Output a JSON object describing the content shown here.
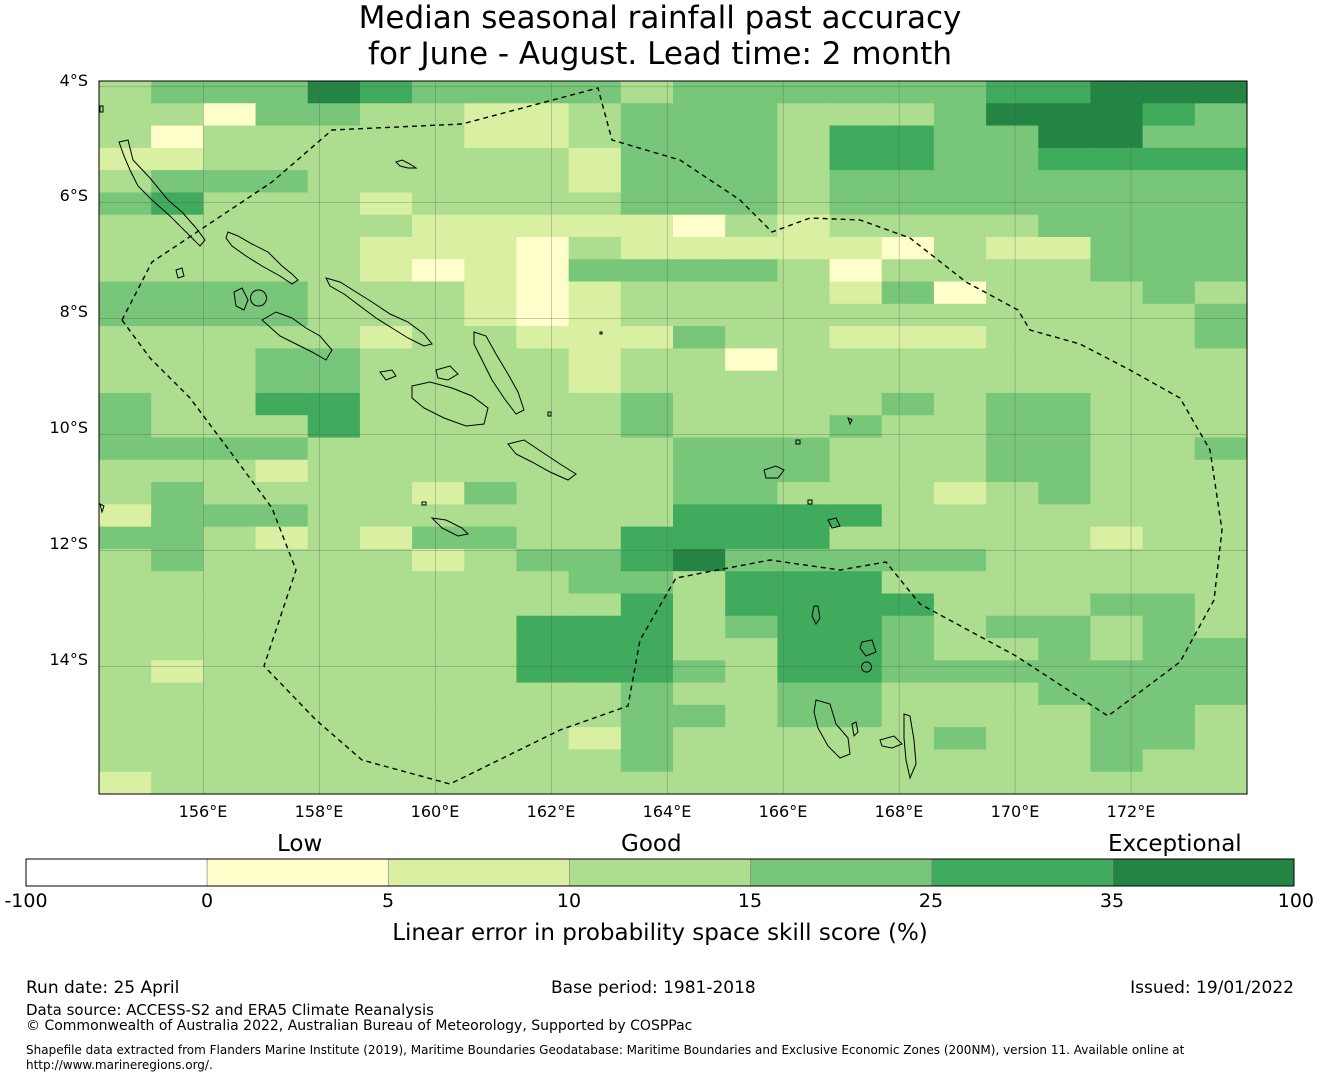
{
  "title": {
    "line1": "Median seasonal rainfall past accuracy",
    "line2": "for June - August. Lead time: 2 month"
  },
  "map": {
    "lat_labels": [
      "4°S",
      "6°S",
      "8°S",
      "10°S",
      "12°S",
      "14°S"
    ],
    "lon_labels": [
      "156°E",
      "158°E",
      "160°E",
      "162°E",
      "164°E",
      "166°E",
      "168°E",
      "170°E",
      "172°E"
    ],
    "extent": {
      "lon_min": 154.2,
      "lon_max": 174.0,
      "lat_min": -16.2,
      "lat_max": -3.9
    },
    "grid_lons": [
      156,
      158,
      160,
      162,
      164,
      166,
      168,
      170,
      172
    ],
    "grid_lats": [
      -4,
      -6,
      -8,
      -10,
      -12,
      -14
    ],
    "cell_grid": {
      "note_legend": "values are colour class indices 0-6 matching colorbar.classes",
      "rows": [
        "3444654444344444455666",
        "3314433223444333466654",
        "3133333223444355446644",
        "2233333332444355445555",
        "3444333332444344444444",
        "4533323333444344444444",
        "3333332222213233334444",
        "3333322213222221322444",
        "3333321214444313333444",
        "4444333212333324133343",
        "4444333212333333333334",
        "3333323322243322233334",
        "3334433332331333333333",
        "3334433332333333333333",
        "4335533333433334344333",
        "4333533333433343344333",
        "4444333333344433344334",
        "3332333333344433344333",
        "3433332433344333234333",
        "2444333333355553333333",
        "4432324433555533333233",
        "3433332344564444433333",
        "3333333334435553333333",
        "3333333333535555333443",
        "3333333355534554344343",
        "3333333355533554334344",
        "3233333355543554444444",
        "3333333333433443334444",
        "3333333333443443333443",
        "3333333332433333433443",
        "3333333333433333333433",
        "2333333333333333333333"
      ]
    }
  },
  "colorbar": {
    "category_low": "Low",
    "category_good": "Good",
    "category_exceptional": "Exceptional",
    "ticks": [
      "-100",
      "0",
      "5",
      "10",
      "15",
      "25",
      "35",
      "100"
    ],
    "classes": [
      "#ffffff",
      "#ffffcc",
      "#d9f0a3",
      "#addd8e",
      "#78c679",
      "#41ab5d",
      "#238443"
    ],
    "title": "Linear error in probability space skill score (%)"
  },
  "footer": {
    "run_date": "Run date: 25 April",
    "base_period": "Base period: 1981-2018",
    "issued": "Issued: 19/01/2022",
    "data_source": "Data source: ACCESS-S2 and ERA5 Climate Reanalysis",
    "copyright": "© Commonwealth of Australia 2022, Australian Bureau of Meteorology, Supported by COSPPac",
    "shapefile_line1": "Shapefile data extracted from Flanders Marine Institute (2019), Maritime Boundaries Geodatabase: Maritime Boundaries and Exclusive Economic Zones (200NM), version 11. Available online at",
    "shapefile_line2": "http://www.marineregions.org/."
  }
}
